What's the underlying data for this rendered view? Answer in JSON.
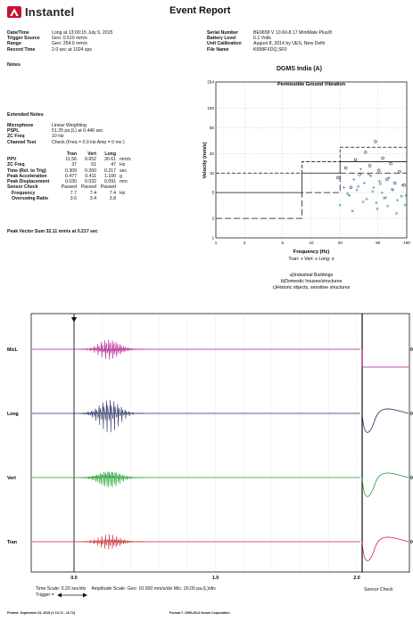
{
  "header": {
    "brand": "Instantel",
    "title": "Event Report"
  },
  "left_info": [
    {
      "k": "Date/Time",
      "v": "Long at 13:00:15 July 9, 2015"
    },
    {
      "k": "Trigger Source",
      "v": "Geo: 0.510 mm/s"
    },
    {
      "k": "Range",
      "v": "Geo: 254.0 mm/s"
    },
    {
      "k": "Record Time",
      "v": "2.0 sec at 1024 sps"
    }
  ],
  "right_info": [
    {
      "k": "Serial Number",
      "v": "BE9658 V 10.60-8.17 MiniMate Plus/8"
    },
    {
      "k": "Battery Level",
      "v": "6.1 Volts"
    },
    {
      "k": "Unit Calibration",
      "v": "August 8, 2014 by UES, New Delhi"
    },
    {
      "k": "File Name",
      "v": "K658FXDQ.SF0"
    }
  ],
  "notes_label": "Notes",
  "extended_notes_label": "Extended Notes",
  "mic_info": [
    {
      "k": "Microphone",
      "v": "Linear Weighting"
    },
    {
      "k": "PSPL",
      "v": "51.25 pa.(L) at 0.446 sec"
    },
    {
      "k": "ZC Freq",
      "v": "10 Hz"
    },
    {
      "k": "Channel Test",
      "v": "Check (Freq = 0.0 Hz Amp = 0 mv )"
    }
  ],
  "ppv_table": {
    "headers": [
      "Tran",
      "Vert",
      "Long"
    ],
    "rows": [
      {
        "k": "PPV",
        "v": [
          "11.56",
          "9.652",
          "30.61"
        ],
        "u": "mm/s"
      },
      {
        "k": "ZC Freq",
        "v": [
          "37",
          "51",
          "47"
        ],
        "u": "Hz"
      },
      {
        "k": "Time (Rel. to Trig)",
        "v": [
          "0.309",
          "0.260",
          "0.217"
        ],
        "u": "sec"
      },
      {
        "k": "Peak Acceleration",
        "v": [
          "0.477",
          "0.411",
          "1.100"
        ],
        "u": "g"
      },
      {
        "k": "Peak Displacement",
        "v": [
          "0.030",
          "0.032",
          "0.091"
        ],
        "u": "mm"
      },
      {
        "k": "Sensor Check",
        "v": [
          "Passed",
          "Passed",
          "Passed"
        ],
        "u": ""
      },
      {
        "k": "Frequency",
        "v": [
          "7.7",
          "7.4",
          "7.4"
        ],
        "u": "Hz"
      },
      {
        "k": "Overswing Ratio",
        "v": [
          "3.6",
          "3.4",
          "3.8"
        ],
        "u": ""
      }
    ]
  },
  "peak_vector_sum": "Peak Vector Sum  32.11 mm/s at 0.217 sec",
  "chart_data": [
    {
      "type": "scatter",
      "title": "DGMS India (A)",
      "subtitle": "Permissible Ground Vibration",
      "xlabel": "Frequency (Hz)",
      "ylabel": "Velocity (mm/s)",
      "xscale": "log",
      "yscale": "log",
      "xlim": [
        1,
        100
      ],
      "ylim": [
        1,
        254
      ],
      "x_ticks": [
        "1",
        "2",
        "5",
        "10",
        "20",
        "50",
        "100"
      ],
      "y_ticks": [
        "1",
        "2",
        "5",
        "10",
        "20",
        "50",
        "100",
        "254"
      ],
      "limit_lines": [
        {
          "name": "a",
          "points": [
            [
              1,
              5
            ],
            [
              8,
              5
            ],
            [
              8,
              10
            ],
            [
              20,
              10
            ],
            [
              20,
              15
            ],
            [
              100,
              15
            ]
          ]
        },
        {
          "name": "b",
          "points": [
            [
              1,
              10
            ],
            [
              8,
              10
            ],
            [
              8,
              15
            ],
            [
              20,
              15
            ],
            [
              20,
              25
            ],
            [
              100,
              25
            ]
          ]
        },
        {
          "name": "c",
          "points": [
            [
              1,
              2
            ],
            [
              8,
              2
            ],
            [
              8,
              5
            ],
            [
              20,
              5
            ],
            [
              20,
              10
            ],
            [
              100,
              10
            ]
          ]
        }
      ],
      "legend": "Tran: +  Vert: x  Long: o",
      "notes": [
        "a)Industrial Buildings",
        "b)Domestic houses/structures",
        "c)Historic objects, sensitive structures"
      ],
      "series": [
        {
          "name": "Tran",
          "marker": "+",
          "color": "#2a6ad0",
          "points": [
            [
              22,
              6
            ],
            [
              25,
              4.5
            ],
            [
              28,
              8
            ],
            [
              30,
              5.5
            ],
            [
              33,
              11.5
            ],
            [
              36,
              7
            ],
            [
              38,
              4
            ],
            [
              42,
              9
            ],
            [
              45,
              6
            ],
            [
              48,
              3.5
            ],
            [
              52,
              7.5
            ],
            [
              55,
              5
            ],
            [
              60,
              4.2
            ],
            [
              65,
              8.5
            ],
            [
              72,
              5.5
            ],
            [
              80,
              3.8
            ],
            [
              90,
              6.5
            ],
            [
              98,
              4.5
            ]
          ]
        },
        {
          "name": "Vert",
          "marker": "x",
          "color": "#22a04a",
          "points": [
            [
              20,
              3.2
            ],
            [
              24,
              4.8
            ],
            [
              27,
              2.6
            ],
            [
              31,
              6.2
            ],
            [
              35,
              3.6
            ],
            [
              40,
              9.6
            ],
            [
              44,
              5.2
            ],
            [
              49,
              2.8
            ],
            [
              53,
              6.8
            ],
            [
              58,
              4.1
            ],
            [
              63,
              3.1
            ],
            [
              70,
              5.6
            ],
            [
              78,
              2.4
            ],
            [
              88,
              4.4
            ],
            [
              96,
              3.2
            ]
          ]
        },
        {
          "name": "Long",
          "marker": "o",
          "color": "#333366",
          "points": [
            [
              19,
              8.5
            ],
            [
              23,
              12
            ],
            [
              26,
              6
            ],
            [
              29,
              16
            ],
            [
              32,
              9.5
            ],
            [
              37,
              21
            ],
            [
              41,
              13
            ],
            [
              47,
              30.6
            ],
            [
              51,
              11
            ],
            [
              56,
              17
            ],
            [
              62,
              8
            ],
            [
              68,
              14
            ],
            [
              75,
              7
            ],
            [
              84,
              10.5
            ],
            [
              94,
              6.5
            ]
          ]
        }
      ]
    },
    {
      "type": "line",
      "title": "",
      "xlabel": "",
      "ylabel": "",
      "x_ticks": [
        "0.0",
        "1.0",
        "2.0"
      ],
      "xlim": [
        0,
        2.0
      ],
      "channels": [
        {
          "name": "MicL",
          "color": "#b0178d"
        },
        {
          "name": "Long",
          "color": "#1f2a60"
        },
        {
          "name": "Vert",
          "color": "#1e9e2e"
        },
        {
          "name": "Tran",
          "color": "#c8252e"
        }
      ]
    }
  ],
  "waveform_side_marks": [
    "0",
    "0",
    "0",
    "0"
  ],
  "footer": {
    "time_scale": "Time Scale: 0.20 sec/div",
    "amplitude_scale": "Amplitude Scale: Geo: 10.000 mm/s/div Mic: 20.00 pa.(L)/div",
    "trigger": "Trigger =",
    "sensor_check": "Sensor Check",
    "printed": "Printed: September 23, 2015 (V 10.72 - 10.72)",
    "format": "Format © 1995-2014 Xmark Corporation"
  }
}
